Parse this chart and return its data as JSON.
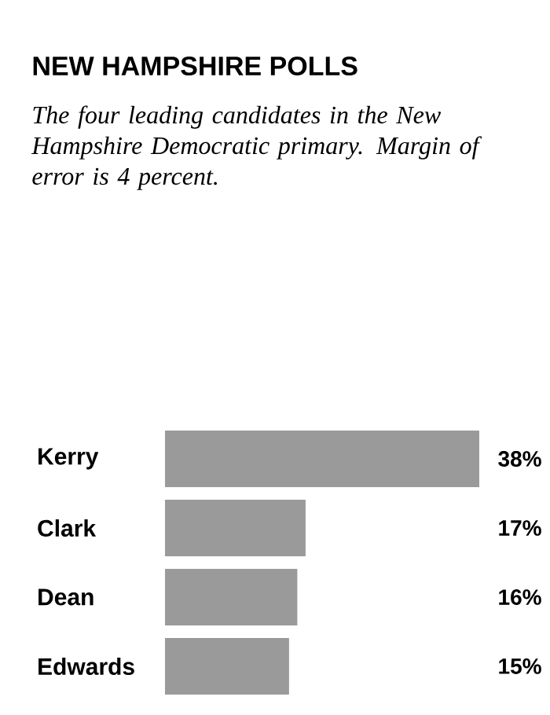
{
  "chart_data": {
    "type": "bar",
    "orientation": "horizontal",
    "title": "NEW HAMPSHIRE POLLS",
    "subtitle": "The four leading candidates in the New Hampshire Democratic primary. Margin of error is 4 percent.",
    "categories": [
      "Kerry",
      "Clark",
      "Dean",
      "Edwards"
    ],
    "values": [
      38,
      17,
      16,
      15
    ],
    "value_labels": [
      "38%",
      "17%",
      "16%",
      "15%"
    ],
    "color": "#9a9a9a"
  }
}
